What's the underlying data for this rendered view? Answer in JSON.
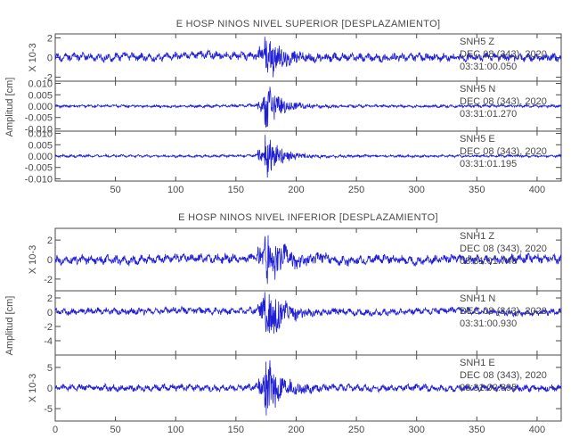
{
  "chart_data": [
    {
      "type": "line",
      "title": "E HOSP NINOS NIVEL SUPERIOR [DESPLAZAMIENTO]",
      "ylabel": "Amplitud [cm]",
      "x_ticks": [
        50,
        100,
        150,
        200,
        250,
        300,
        350,
        400
      ],
      "xlim": [
        0,
        420
      ],
      "panels": [
        {
          "station": "SNH5",
          "component": "Z",
          "date": "DEC 08 (343), 2020",
          "time": "03:31:00.050",
          "scale_label": "X 10-3",
          "ylim": [
            -2.4,
            2.4
          ],
          "y_ticks": [
            -2,
            0,
            2
          ],
          "y_tick_labels": [
            "-2",
            "0",
            "2"
          ],
          "color": "#1f1fd6",
          "noise_amp": 0.3,
          "event_peak": 2.2,
          "series": [
            {
              "x": [
                0,
                20,
                40,
                60,
                80,
                100,
                120,
                140,
                160,
                170,
                174,
                176,
                178,
                180,
                185,
                190,
                200,
                215,
                240,
                270,
                300,
                330,
                360,
                390,
                420
              ],
              "y": [
                0.05,
                0.3,
                -0.2,
                0.4,
                -0.1,
                0.5,
                0.9,
                0.6,
                0.4,
                0.7,
                1.9,
                -2.2,
                2.1,
                -1.7,
                1.1,
                -0.9,
                0.4,
                -0.3,
                0.2,
                -0.2,
                0.15,
                -0.1,
                0.2,
                -0.1,
                0.05
              ]
            }
          ]
        },
        {
          "station": "SNH5",
          "component": "N",
          "date": "DEC 08 (343), 2020",
          "time": "03:31:01.270",
          "scale_label": "",
          "ylim": [
            -0.011,
            0.011
          ],
          "y_ticks": [
            -0.01,
            -0.005,
            0.0,
            0.005,
            0.01
          ],
          "y_tick_labels": [
            "-0.010",
            "-0.005",
            "0.000",
            "0.005",
            "0.010"
          ],
          "color": "#1f1fd6",
          "noise_amp": 0.00045,
          "event_peak": 0.0095,
          "series": [
            {
              "x": [
                0,
                50,
                100,
                150,
                170,
                174,
                176,
                178,
                180,
                185,
                190,
                200,
                220,
                260,
                300,
                350,
                420
              ],
              "y": [
                0.0,
                0.0004,
                -0.0003,
                0.0005,
                0.0012,
                0.0045,
                -0.0092,
                0.0085,
                -0.006,
                0.004,
                -0.0025,
                0.0012,
                -0.0006,
                0.0003,
                -0.0002,
                0.0002,
                0.0
              ]
            }
          ]
        },
        {
          "station": "SNH5",
          "component": "E",
          "date": "DEC 08 (343), 2020",
          "time": "03:31:01.195",
          "scale_label": "",
          "ylim": [
            -0.011,
            0.011
          ],
          "y_ticks": [
            -0.01,
            -0.005,
            0.0,
            0.005,
            0.01
          ],
          "y_tick_labels": [
            "-0.010",
            "-0.005",
            "0.000",
            "0.005",
            "0.010"
          ],
          "color": "#1f1fd6",
          "noise_amp": 0.0004,
          "event_peak": 0.0092,
          "series": [
            {
              "x": [
                0,
                50,
                100,
                150,
                170,
                174,
                176,
                178,
                180,
                185,
                190,
                200,
                220,
                260,
                300,
                350,
                420
              ],
              "y": [
                0.0,
                0.0003,
                -0.0003,
                0.0004,
                0.001,
                0.004,
                -0.0088,
                0.0083,
                -0.0055,
                0.0035,
                -0.0022,
                0.0011,
                -0.0005,
                0.0003,
                -0.0002,
                0.0002,
                0.0
              ]
            }
          ]
        }
      ]
    },
    {
      "type": "line",
      "title": "E HOSP NINOS NIVEL INFERIOR [DESPLAZAMIENTO]",
      "ylabel": "Amplitud [cm]",
      "x_ticks": [
        0,
        50,
        100,
        150,
        200,
        250,
        300,
        350,
        400
      ],
      "xlim": [
        0,
        420
      ],
      "panels": [
        {
          "station": "SNH1",
          "component": "Z",
          "date": "DEC 08 (343), 2020",
          "time": "03:31:01.740",
          "scale_label": "X 10-3",
          "ylim": [
            -3.2,
            3.2
          ],
          "y_ticks": [
            -2,
            0,
            2
          ],
          "y_tick_labels": [
            "-2",
            "0",
            "2"
          ],
          "color": "#1f1fd6",
          "noise_amp": 0.35,
          "event_peak": 3.0,
          "series": [
            {
              "x": [
                0,
                30,
                60,
                100,
                140,
                160,
                170,
                174,
                176,
                178,
                182,
                190,
                200,
                220,
                240,
                270,
                300,
                330,
                360,
                390,
                420
              ],
              "y": [
                -0.3,
                0.1,
                -0.4,
                0.6,
                0.2,
                0.5,
                0.8,
                2.6,
                -3.0,
                2.8,
                -2.1,
                1.6,
                -1.2,
                0.9,
                -0.6,
                0.3,
                -0.5,
                0.4,
                -0.3,
                0.5,
                0.2
              ]
            }
          ]
        },
        {
          "station": "SNH1",
          "component": "N",
          "date": "DEC 08 (343), 2020",
          "time": "03:31:00.930",
          "scale_label": "",
          "ylim": [
            -6,
            3
          ],
          "y_ticks": [
            -4,
            -2,
            0,
            2
          ],
          "y_tick_labels": [
            "-4",
            "-2",
            "0",
            "2"
          ],
          "color": "#1f1fd6",
          "noise_amp": 0.35,
          "event_peak": 4.5,
          "series": [
            {
              "x": [
                0,
                30,
                60,
                100,
                140,
                160,
                170,
                174,
                176,
                178,
                182,
                190,
                200,
                230,
                260,
                300,
                330,
                360,
                390,
                420
              ],
              "y": [
                0.0,
                0.5,
                0.2,
                0.9,
                0.3,
                0.6,
                0.9,
                2.3,
                -4.8,
                2.1,
                -2.7,
                1.5,
                -0.9,
                0.4,
                -0.3,
                0.5,
                0.8,
                0.2,
                -0.5,
                0.3
              ]
            }
          ]
        },
        {
          "station": "SNH1",
          "component": "E",
          "date": "DEC 08 (343), 2020",
          "time": "03:31:00.895",
          "scale_label": "X 10-3",
          "ylim": [
            -8,
            8
          ],
          "y_ticks": [
            -5,
            0,
            5
          ],
          "y_tick_labels": [
            "-5",
            "0",
            "5"
          ],
          "color": "#1f1fd6",
          "noise_amp": 0.6,
          "event_peak": 7.0,
          "series": [
            {
              "x": [
                0,
                30,
                60,
                100,
                140,
                160,
                170,
                174,
                176,
                178,
                182,
                190,
                200,
                230,
                260,
                300,
                330,
                360,
                390,
                420
              ],
              "y": [
                0.0,
                0.4,
                -0.3,
                0.5,
                -0.2,
                0.6,
                1.0,
                3.5,
                -6.8,
                5.5,
                -3.8,
                2.1,
                -1.2,
                0.6,
                -0.4,
                0.3,
                -0.5,
                0.4,
                -0.3,
                0.1
              ]
            }
          ]
        }
      ]
    }
  ]
}
